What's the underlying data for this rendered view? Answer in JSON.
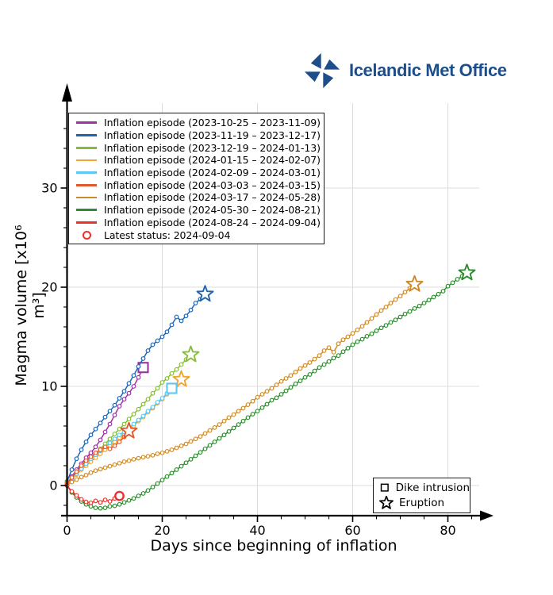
{
  "logo": {
    "text": "Icelandic Met Office",
    "color": "#1c4e8c"
  },
  "chart_data": {
    "type": "line",
    "title": "",
    "xlabel": "Days since beginning of inflation",
    "ylabel": "Magma volume [x10⁶ m³]",
    "xlim": [
      0,
      88
    ],
    "ylim": [
      -3,
      38
    ],
    "xticks": [
      0,
      20,
      40,
      60,
      80
    ],
    "yticks": [
      0,
      10,
      20,
      30
    ],
    "x_minor_step": 5,
    "y_minor_step": 2,
    "grid": true,
    "grid_color": "#dcdcdc",
    "legend_position": "upper left",
    "latest_status_label": "Latest status: 2024-09-04",
    "latest_status_color": "#e8332c",
    "marker_legend": [
      {
        "marker": "square",
        "label": "Dike intrusion"
      },
      {
        "marker": "star",
        "label": "Eruption"
      }
    ],
    "series": [
      {
        "label": "Inflation episode (2023-10-25 – 2023-11-09)",
        "color": "#9a32a0",
        "end_marker": "square",
        "values": [
          0.2,
          0.9,
          1.6,
          2.2,
          2.8,
          3.3,
          3.9,
          4.6,
          5.4,
          6.2,
          7.1,
          8.0,
          8.7,
          9.3,
          10.0,
          10.9,
          11.9
        ]
      },
      {
        "label": "Inflation episode (2023-11-19 – 2023-12-17)",
        "color": "#1f64b0",
        "end_marker": "star",
        "values": [
          0.4,
          1.6,
          2.7,
          3.6,
          4.4,
          5.1,
          5.7,
          6.3,
          6.9,
          7.5,
          8.1,
          8.8,
          9.5,
          10.3,
          11.1,
          12.0,
          12.8,
          13.6,
          14.2,
          14.6,
          15.0,
          15.5,
          16.2,
          17.0,
          16.6,
          17.1,
          17.7,
          18.4,
          18.8,
          19.3
        ]
      },
      {
        "label": "Inflation episode (2023-12-19 – 2024-01-13)",
        "color": "#85bd3a",
        "end_marker": "star",
        "values": [
          0.3,
          0.8,
          1.3,
          1.8,
          2.3,
          2.8,
          3.2,
          3.7,
          4.2,
          4.7,
          5.2,
          5.7,
          6.2,
          6.7,
          7.2,
          7.7,
          8.2,
          8.7,
          9.3,
          9.8,
          10.4,
          10.8,
          11.3,
          11.7,
          12.2,
          12.7,
          13.2
        ]
      },
      {
        "label": "Inflation episode (2024-01-15 – 2024-02-07)",
        "color": "#f0a52f",
        "end_marker": "star",
        "values": [
          0.2,
          0.7,
          1.1,
          1.6,
          2.0,
          2.4,
          2.8,
          3.2,
          3.6,
          4.0,
          4.4,
          4.8,
          5.2,
          5.6,
          6.0,
          6.5,
          6.9,
          7.4,
          7.8,
          8.3,
          8.7,
          9.2,
          9.6,
          10.1,
          10.7
        ]
      },
      {
        "label": "Inflation episode (2024-02-09 – 2024-03-01)",
        "color": "#5cc7f2",
        "end_marker": "square",
        "values": [
          0.2,
          0.7,
          1.2,
          1.7,
          2.2,
          2.7,
          3.1,
          3.5,
          3.9,
          4.3,
          4.7,
          5.1,
          5.4,
          5.8,
          6.2,
          6.6,
          7.0,
          7.5,
          7.9,
          8.4,
          8.8,
          9.3,
          9.8
        ]
      },
      {
        "label": "Inflation episode (2024-03-03 – 2024-03-15)",
        "color": "#e2592b",
        "end_marker": "star",
        "values": [
          0.2,
          0.8,
          1.4,
          2.0,
          2.5,
          2.9,
          3.3,
          3.6,
          3.9,
          3.7,
          4.0,
          4.4,
          4.9,
          5.5
        ]
      },
      {
        "label": "Inflation episode (2024-03-17 – 2024-05-28)",
        "color": "#cd8a2a",
        "end_marker": "star",
        "values": [
          0.1,
          0.35,
          0.6,
          0.85,
          1.05,
          1.3,
          1.5,
          1.65,
          1.8,
          1.95,
          2.1,
          2.25,
          2.4,
          2.5,
          2.65,
          2.75,
          2.85,
          2.95,
          3.05,
          3.2,
          3.3,
          3.45,
          3.6,
          3.8,
          4.0,
          4.2,
          4.45,
          4.7,
          4.95,
          5.25,
          5.55,
          5.85,
          6.15,
          6.5,
          6.85,
          7.15,
          7.5,
          7.8,
          8.15,
          8.5,
          8.9,
          9.2,
          9.5,
          9.8,
          10.15,
          10.5,
          10.8,
          11.1,
          11.45,
          11.8,
          12.1,
          12.4,
          12.75,
          13.1,
          13.6,
          13.9,
          13.45,
          14.3,
          14.7,
          15.0,
          15.35,
          15.7,
          16.05,
          16.45,
          16.85,
          17.25,
          17.65,
          18.0,
          18.4,
          18.75,
          19.1,
          19.5,
          19.9,
          20.3
        ]
      },
      {
        "label": "Inflation episode (2024-05-30 – 2024-08-21)",
        "color": "#2e8b30",
        "end_marker": "star",
        "values": [
          0.0,
          -0.7,
          -1.2,
          -1.6,
          -1.9,
          -2.1,
          -2.25,
          -2.3,
          -2.25,
          -2.1,
          -2.05,
          -1.9,
          -1.7,
          -1.5,
          -1.3,
          -1.05,
          -0.8,
          -0.5,
          -0.15,
          0.2,
          0.55,
          0.9,
          1.25,
          1.6,
          1.95,
          2.3,
          2.65,
          3.0,
          3.35,
          3.7,
          4.05,
          4.4,
          4.75,
          5.1,
          5.45,
          5.8,
          6.15,
          6.5,
          6.85,
          7.2,
          7.5,
          7.85,
          8.2,
          8.6,
          8.85,
          9.2,
          9.55,
          9.9,
          10.25,
          10.55,
          10.9,
          11.2,
          11.55,
          11.9,
          12.2,
          12.5,
          12.85,
          13.1,
          13.5,
          13.85,
          14.2,
          14.5,
          14.75,
          15.05,
          15.3,
          15.6,
          15.9,
          16.15,
          16.45,
          16.7,
          17.0,
          17.3,
          17.55,
          17.85,
          18.1,
          18.4,
          18.7,
          19.0,
          19.3,
          19.6,
          20.1,
          20.45,
          20.8,
          21.1,
          21.45
        ]
      },
      {
        "label": "Inflation episode (2024-08-24 – 2024-09-04)",
        "color": "#e8332c",
        "end_marker": "latest",
        "values": [
          0.0,
          -0.6,
          -1.0,
          -1.4,
          -1.65,
          -1.75,
          -1.55,
          -1.7,
          -1.45,
          -1.6,
          -1.3,
          -1.05
        ]
      }
    ]
  }
}
